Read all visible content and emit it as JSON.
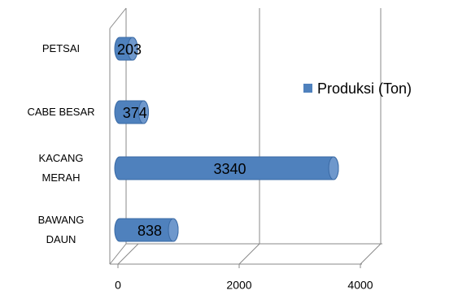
{
  "chart_data": {
    "type": "bar",
    "orientation": "horizontal",
    "categories": [
      "BAWANG DAUN",
      "KACANG MERAH",
      "CABE BESAR",
      "PETSAI"
    ],
    "series": [
      {
        "name": "Produksi (Ton)",
        "color": "#4f81bd",
        "values": [
          838,
          3340,
          374,
          203
        ]
      }
    ],
    "xlim": [
      0,
      4000
    ],
    "xticks": [
      0,
      2000,
      4000
    ],
    "grid": true,
    "legend": "right"
  }
}
